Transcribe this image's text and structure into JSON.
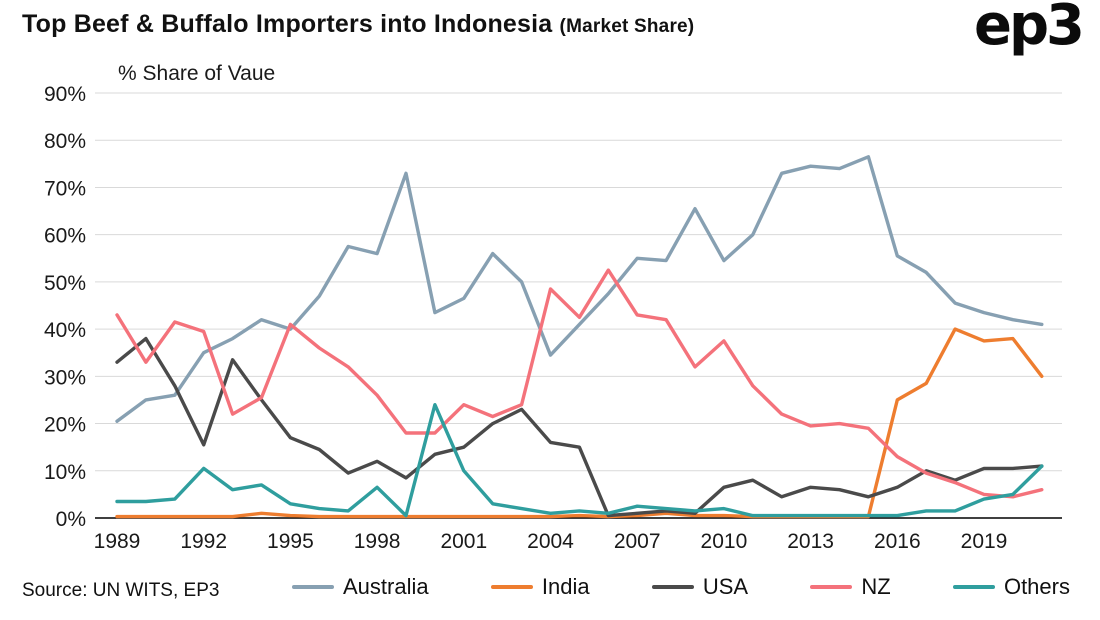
{
  "header": {
    "title": "Top Beef & Buffalo Importers into Indonesia",
    "title_suffix": "(Market Share)",
    "logo": "ep3"
  },
  "chart_data": {
    "type": "line",
    "title": "Top Beef & Buffalo Importers into Indonesia (Market Share)",
    "subtitle": "% Share of Vaue",
    "xlabel": "",
    "ylabel": "% Share of Vaue",
    "ylim": [
      0,
      90
    ],
    "yticks": [
      0,
      10,
      20,
      30,
      40,
      50,
      60,
      70,
      80,
      90
    ],
    "xticks": [
      1989,
      1992,
      1995,
      1998,
      2001,
      2004,
      2007,
      2010,
      2013,
      2016,
      2019
    ],
    "grid": true,
    "legend_position": "bottom",
    "x": [
      1989,
      1990,
      1991,
      1992,
      1993,
      1994,
      1995,
      1996,
      1997,
      1998,
      1999,
      2000,
      2001,
      2002,
      2003,
      2004,
      2005,
      2006,
      2007,
      2008,
      2009,
      2010,
      2011,
      2012,
      2013,
      2014,
      2015,
      2016,
      2017,
      2018,
      2019,
      2020,
      2021
    ],
    "series": [
      {
        "name": "Australia",
        "color": "#87a0b2",
        "values": [
          20.5,
          25,
          26,
          35,
          38,
          42,
          40,
          47,
          57.5,
          56,
          73,
          43.5,
          46.5,
          56,
          50,
          34.5,
          41,
          47.5,
          55,
          54.5,
          65.5,
          54.5,
          60,
          73,
          74.5,
          74,
          76.5,
          55.5,
          52,
          45.5,
          43.5,
          42,
          41
        ]
      },
      {
        "name": "India",
        "color": "#ee7d2f",
        "values": [
          0.3,
          0.3,
          0.3,
          0.3,
          0.3,
          1,
          0.5,
          0.3,
          0.3,
          0.3,
          0.3,
          0.3,
          0.3,
          0.3,
          0.3,
          0.3,
          0.5,
          0.3,
          0.5,
          1,
          0.5,
          0.5,
          0.3,
          0.3,
          0.3,
          0.3,
          0.3,
          25,
          28.5,
          40,
          37.5,
          38,
          30
        ]
      },
      {
        "name": "USA",
        "color": "#4a4a4a",
        "values": [
          33,
          38,
          28,
          15.5,
          33.5,
          25,
          17,
          14.5,
          9.5,
          12,
          8.5,
          13.5,
          15,
          20,
          23,
          16,
          15,
          0.5,
          1,
          1.5,
          1,
          6.5,
          8,
          4.5,
          6.5,
          6,
          4.5,
          6.5,
          10,
          8,
          10.5,
          10.5,
          11
        ]
      },
      {
        "name": "NZ",
        "color": "#f4727b",
        "values": [
          43,
          33,
          41.5,
          39.5,
          22,
          25.5,
          41,
          36,
          32,
          26,
          18,
          18,
          24,
          21.5,
          24,
          48.5,
          42.5,
          52.5,
          43,
          42,
          32,
          37.5,
          28,
          22,
          19.5,
          20,
          19,
          13,
          9.5,
          7.5,
          5,
          4.5,
          6
        ]
      },
      {
        "name": "Others",
        "color": "#2f9e9e",
        "values": [
          3.5,
          3.5,
          4,
          10.5,
          6,
          7,
          3,
          2,
          1.5,
          6.5,
          0.5,
          24,
          10,
          3,
          2,
          1,
          1.5,
          1,
          2.5,
          2,
          1.5,
          2,
          0.5,
          0.5,
          0.5,
          0.5,
          0.5,
          0.5,
          1.5,
          1.5,
          4,
          5,
          11
        ]
      }
    ]
  },
  "footer": {
    "source": "Source: UN WITS, EP3"
  }
}
